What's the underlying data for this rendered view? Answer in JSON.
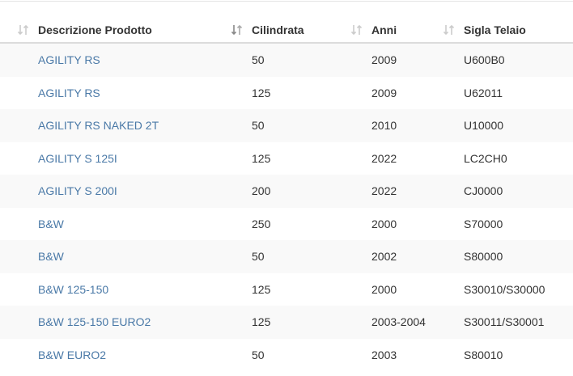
{
  "table": {
    "columns": [
      "Descrizione Prodotto",
      "Cilindrata",
      "Anni",
      "Sigla Telaio"
    ],
    "rows": [
      [
        "AGILITY RS",
        "50",
        "2009",
        "U600B0"
      ],
      [
        "AGILITY RS",
        "125",
        "2009",
        "U62011"
      ],
      [
        "AGILITY RS NAKED 2T",
        "50",
        "2010",
        "U10000"
      ],
      [
        "AGILITY S 125I",
        "125",
        "2022",
        "LC2CH0"
      ],
      [
        "AGILITY S 200I",
        "200",
        "2022",
        "CJ0000"
      ],
      [
        "B&W",
        "250",
        "2000",
        "S70000"
      ],
      [
        "B&W",
        "50",
        "2002",
        "S80000"
      ],
      [
        "B&W 125-150",
        "125",
        "2000",
        "S30010/S30000"
      ],
      [
        "B&W 125-150 EURO2",
        "125",
        "2003-2004",
        "S30011/S30001"
      ],
      [
        "B&W EURO2",
        "50",
        "2003",
        "S80010"
      ]
    ]
  }
}
